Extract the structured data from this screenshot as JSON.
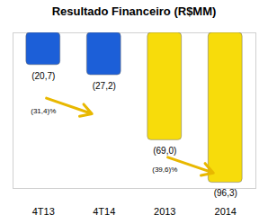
{
  "chart_data": {
    "type": "bar",
    "title": "Resultado Financeiro (R$MM)",
    "categories": [
      "4T13",
      "4T14",
      "2013",
      "2014"
    ],
    "values": [
      -20.7,
      -27.2,
      -69.0,
      -96.3
    ],
    "value_labels": [
      "(20,7)",
      "(27,2)",
      "(69,0)",
      "(96,3)"
    ],
    "colors": [
      "#1c5fd8",
      "#1c5fd8",
      "#f7dc0b",
      "#f7dc0b"
    ],
    "ylim": [
      -100,
      0
    ],
    "yticks": [],
    "tick_labels": "x",
    "data_labels": true,
    "grid": false,
    "annotations": [
      {
        "text": "(31,4)%",
        "from": "4T13",
        "to": "4T14"
      },
      {
        "text": "(39,6)%",
        "from": "2013",
        "to": "2014"
      }
    ]
  }
}
